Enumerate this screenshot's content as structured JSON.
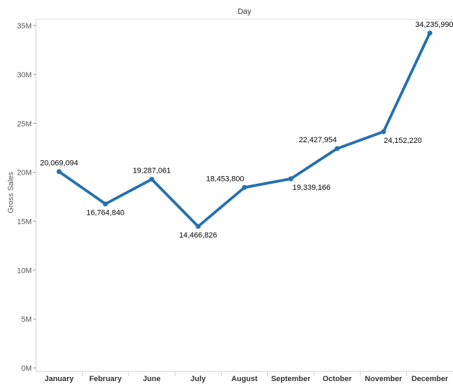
{
  "chart_data": {
    "type": "line",
    "column_header": "Day",
    "ylabel": "Gross Sales",
    "categories": [
      "January",
      "February",
      "June",
      "July",
      "August",
      "September",
      "October",
      "November",
      "December"
    ],
    "values": [
      20069094,
      16764840,
      19287061,
      14466826,
      18453800,
      19339166,
      22427954,
      24152220,
      34235990
    ],
    "data_labels": [
      "20,069,094",
      "16,764,840",
      "19,287,061",
      "14,466,826",
      "18,453,800",
      "19,339,166",
      "22,427,954",
      "24,152,220",
      "34,235,990"
    ],
    "ylim": [
      0,
      37000000
    ],
    "yticks": [
      0,
      5000000,
      10000000,
      15000000,
      20000000,
      25000000,
      30000000,
      35000000
    ],
    "ytick_labels": [
      "0M",
      "5M",
      "10M",
      "15M",
      "20M",
      "25M",
      "30M",
      "35M"
    ],
    "line_color": "#2571b0",
    "grid": false
  }
}
